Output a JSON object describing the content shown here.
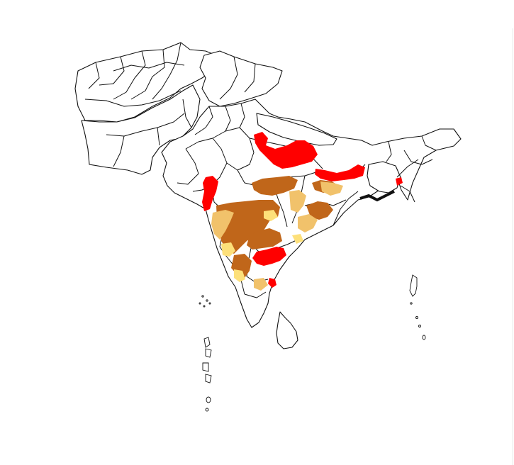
{
  "map": {
    "region": "South Asia",
    "classes": [
      {
        "key": "red",
        "color": "#ff0000"
      },
      {
        "key": "dark-brown",
        "color": "#c0661a"
      },
      {
        "key": "tan",
        "color": "#f1c26b"
      },
      {
        "key": "light-yellow",
        "color": "#fde07a"
      }
    ],
    "colors": {
      "background": "#ffffff",
      "boundary": "#111111",
      "land": "#ffffff"
    }
  }
}
